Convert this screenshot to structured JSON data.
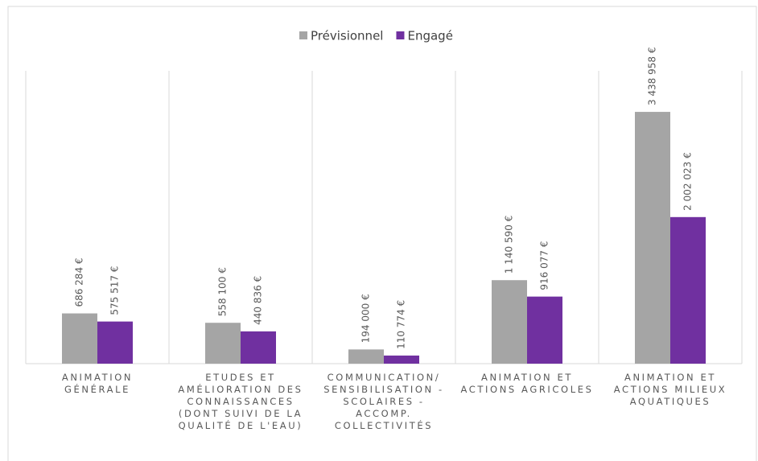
{
  "chart_data": {
    "type": "bar",
    "categories": [
      "ANIMATION GÉNÉRALE",
      "ETUDES ET AMÉLIORATION DES CONNAISSANCES (DONT SUIVI DE LA QUALITÉ DE L'EAU)",
      "COMMUNICATION/ SENSIBILISATION - SCOLAIRES - ACCOMP. COLLECTIVITÉS",
      "ANIMATION ET ACTIONS AGRICOLES",
      "ANIMATION ET ACTIONS MILIEUX AQUATIQUES"
    ],
    "series": [
      {
        "name": "Prévisionnel",
        "color": "#a5a5a5",
        "values": [
          686284,
          558100,
          194000,
          1140590,
          3438958
        ],
        "value_labels": [
          "686 284 €",
          "558 100 €",
          "194 000 €",
          "1 140 590 €",
          "3 438 958 €"
        ]
      },
      {
        "name": "Engagé",
        "color": "#7030a0",
        "values": [
          575517,
          440836,
          110774,
          916077,
          2002023
        ],
        "value_labels": [
          "575 517 €",
          "440 836 €",
          "110 774 €",
          "916 077 €",
          "2 002 023 €"
        ]
      }
    ],
    "ylim": [
      0,
      4000000
    ],
    "legend": "top"
  }
}
